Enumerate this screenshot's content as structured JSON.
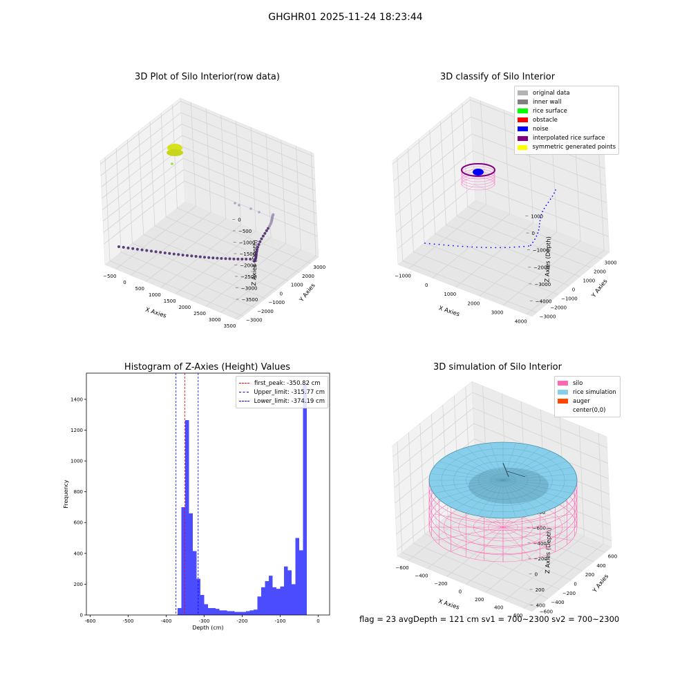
{
  "figure": {
    "suptitle": "GHGHR01 2025-11-24 18:23:44"
  },
  "status_line": {
    "text": "flag = 23   avgDepth = 121 cm  sv1 = 700~2300  sv2 = 700~2300"
  },
  "chart_data": [
    {
      "id": "raw",
      "type": "scatter",
      "title": "3D Plot of Silo Interior(row data)",
      "xlabel": "X Axies",
      "ylabel": "Y Axies",
      "zlabel": "Z Axies (Depth)",
      "x_ticks": [
        "−500",
        "0",
        "500",
        "1000",
        "1500",
        "2000",
        "2500",
        "3000",
        "3500"
      ],
      "y_ticks": [
        "−3000",
        "−2000",
        "−1000",
        "0",
        "1000",
        "2000",
        "3000"
      ],
      "z_ticks": [
        "0",
        "−500",
        "−1000",
        "−1500",
        "−2000",
        "−2500",
        "−3000",
        "−3500"
      ],
      "colors": {
        "points": "#4b2a6e",
        "top_cluster": "#d8e21a",
        "green_point": "#9be22d"
      }
    },
    {
      "id": "classify",
      "type": "scatter",
      "title": "3D classify of Silo Interior",
      "xlabel": "X Axies",
      "ylabel": "Y Axies",
      "zlabel": "Z Axies (Depth)",
      "x_ticks": [
        "−1000",
        "0",
        "1000",
        "2000",
        "3000",
        "4000"
      ],
      "y_ticks": [
        "−3000",
        "−2000",
        "−1000",
        "0",
        "1000",
        "2000",
        "3000"
      ],
      "z_ticks": [
        "1000",
        "0",
        "−1000",
        "−2000",
        "−3000",
        "−4000"
      ],
      "legend": [
        {
          "label": "original data",
          "color": "#b3b3b3"
        },
        {
          "label": "inner wall",
          "color": "#808080"
        },
        {
          "label": "rice surface",
          "color": "#00ff00"
        },
        {
          "label": "obstacle",
          "color": "#ff0000"
        },
        {
          "label": "noise",
          "color": "#0000ff"
        },
        {
          "label": "interpolated rice surface",
          "color": "#800080"
        },
        {
          "label": "symmetric generated points",
          "color": "#ffff00"
        }
      ]
    },
    {
      "id": "histogram",
      "type": "bar",
      "title": "Histogram of Z-Axies (Height) Values",
      "xlabel": "Depth (cm)",
      "ylabel": "Frequency",
      "xlim": [
        -610,
        30
      ],
      "ylim": [
        0,
        1570
      ],
      "x_ticks": [
        -600,
        -500,
        -400,
        -300,
        -200,
        -100,
        0
      ],
      "y_ticks": [
        0,
        200,
        400,
        600,
        800,
        1000,
        1200,
        1400
      ],
      "bin_width": 10,
      "bins": [
        [
          -370,
          45
        ],
        [
          -360,
          700
        ],
        [
          -350,
          1265
        ],
        [
          -340,
          660
        ],
        [
          -330,
          415
        ],
        [
          -320,
          235
        ],
        [
          -310,
          130
        ],
        [
          -300,
          70
        ],
        [
          -290,
          45
        ],
        [
          -280,
          45
        ],
        [
          -270,
          40
        ],
        [
          -260,
          30
        ],
        [
          -250,
          30
        ],
        [
          -240,
          25
        ],
        [
          -230,
          25
        ],
        [
          -220,
          20
        ],
        [
          -210,
          20
        ],
        [
          -200,
          20
        ],
        [
          -190,
          25
        ],
        [
          -180,
          30
        ],
        [
          -170,
          35
        ],
        [
          -160,
          120
        ],
        [
          -150,
          180
        ],
        [
          -140,
          220
        ],
        [
          -130,
          255
        ],
        [
          -120,
          180
        ],
        [
          -110,
          170
        ],
        [
          -100,
          185
        ],
        [
          -90,
          315
        ],
        [
          -80,
          290
        ],
        [
          -70,
          200
        ],
        [
          -60,
          500
        ],
        [
          -50,
          420
        ],
        [
          -40,
          1500
        ]
      ],
      "bar_color": "#4c4cff",
      "lines": [
        {
          "label": "first_peak: -350.82 cm",
          "x": -350.82,
          "color": "#ff0000"
        },
        {
          "label": "Upper_limit: -315.77 cm",
          "x": -315.77,
          "color": "#0000ff"
        },
        {
          "label": "Lower_limit: -374.19 cm",
          "x": -374.19,
          "color": "#0000ff"
        }
      ]
    },
    {
      "id": "simulation",
      "type": "scatter",
      "title": "3D simulation of Silo Interior",
      "xlabel": "X Axies",
      "ylabel": "Y Axies",
      "zlabel": "Z Axies (Depth)",
      "x_ticks": [
        "−600",
        "−400",
        "−200",
        "0",
        "200",
        "400",
        "600"
      ],
      "y_ticks": [
        "−600",
        "−400",
        "−200",
        "0",
        "200",
        "400",
        "600"
      ],
      "z_ticks": [
        "400",
        "200",
        "0",
        "−200",
        "−400",
        "−600",
        "−800"
      ],
      "legend": [
        {
          "label": "silo",
          "color": "#ff69b4"
        },
        {
          "label": "rice simulation",
          "color": "#87ceeb"
        },
        {
          "label": "auger",
          "color": "#ff4500"
        },
        {
          "label": "center(0,0)",
          "color": "#ffffff"
        }
      ]
    }
  ]
}
